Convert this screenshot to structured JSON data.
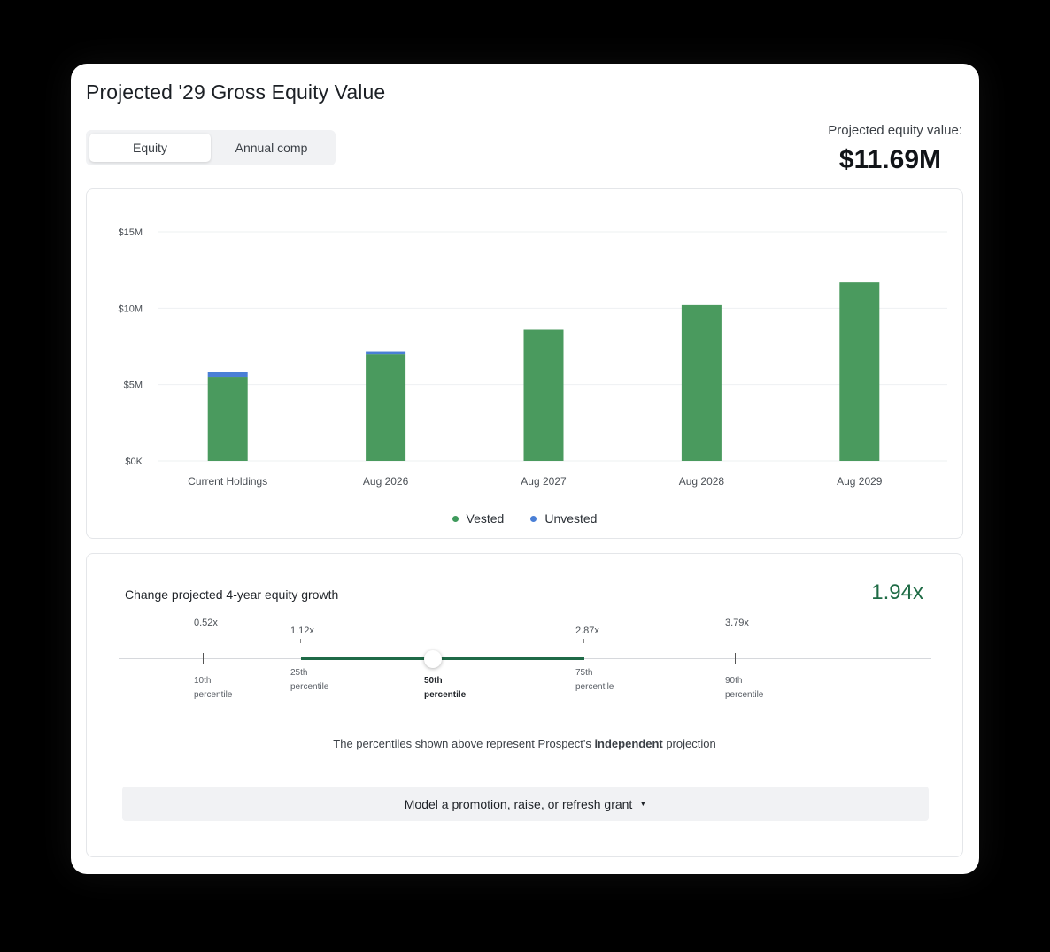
{
  "title": "Projected '29 Gross Equity Value",
  "toggle": {
    "equity": "Equity",
    "annual": "Annual comp"
  },
  "projected": {
    "label": "Projected equity value:",
    "value": "$11.69M"
  },
  "chart_data": {
    "type": "bar",
    "stacked": true,
    "categories": [
      "Current Holdings",
      "Aug 2026",
      "Aug 2027",
      "Aug 2028",
      "Aug 2029"
    ],
    "series": [
      {
        "name": "Vested",
        "color": "#4a9a5e",
        "values": [
          5.5,
          7.0,
          8.6,
          10.2,
          11.69
        ]
      },
      {
        "name": "Unvested",
        "color": "#4a7fd6",
        "values": [
          0.3,
          0.15,
          0,
          0,
          0
        ]
      }
    ],
    "ylim": [
      0,
      15
    ],
    "yticks": [
      0,
      5,
      10,
      15
    ],
    "ytick_labels": [
      "$0K",
      "$5M",
      "$10M",
      "$15M"
    ],
    "legend": [
      {
        "label": "Vested",
        "color": "#3f9a5c"
      },
      {
        "label": "Unvested",
        "color": "#4a7fd6"
      }
    ]
  },
  "growth": {
    "title": "Change projected 4-year equity growth",
    "value": "1.94x",
    "slider_fraction": 0.5,
    "percentiles": [
      {
        "value": "0.52x",
        "line1": "10th",
        "line2": "percentile"
      },
      {
        "value": "1.12x",
        "line1": "25th",
        "line2": "percentile"
      },
      {
        "value": "",
        "line1": "50th",
        "line2": "percentile"
      },
      {
        "value": "2.87x",
        "line1": "75th",
        "line2": "percentile"
      },
      {
        "value": "3.79x",
        "line1": "90th",
        "line2": "percentile"
      }
    ]
  },
  "note": {
    "prefix": "The percentiles shown above represent ",
    "link_a": "Prospect's ",
    "link_b": "independent",
    "link_c": " projection"
  },
  "model_button": "Model a promotion, raise, or refresh grant"
}
